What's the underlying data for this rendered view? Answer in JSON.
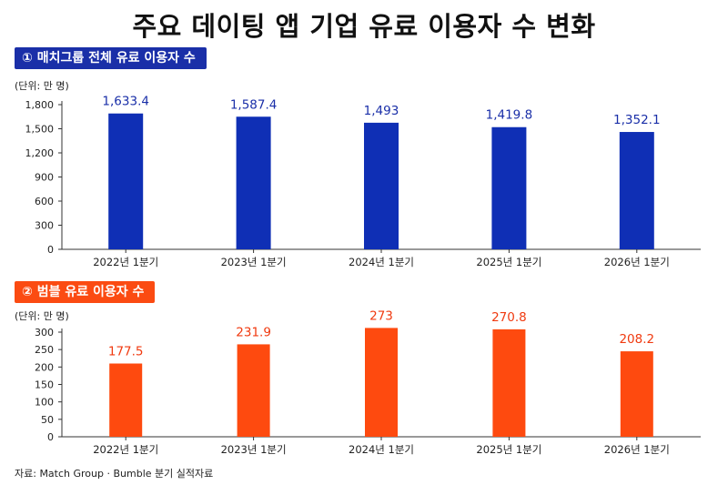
{
  "title": "주요 데이팅 앱 기업 유료 이용자 수 변화",
  "source": "자료: Match Group · Bumble 분기 실적자료",
  "colors": {
    "series1": "#0f2fb5",
    "series2": "#fe4a0f",
    "label1": "#1a2fa8",
    "label2": "#f03a10"
  },
  "chart_data": [
    {
      "type": "bar",
      "badge": "① 매치그룹 전체 유료 이용자 수",
      "unit": "(단위: 만 명)",
      "categories": [
        "2022년 1분기",
        "2023년 1분기",
        "2024년 1분기",
        "2025년 1분기",
        "2026년 1분기"
      ],
      "values": [
        1633.4,
        1587.4,
        1493,
        1419.8,
        1352.1
      ],
      "value_labels": [
        "1,633.4",
        "1,587.4",
        "1,493",
        "1,419.8",
        "1,352.1"
      ],
      "display_values": [
        1690,
        1650,
        1575,
        1520,
        1460
      ],
      "yticks": [
        0,
        300,
        600,
        900,
        1200,
        1500,
        1800
      ],
      "ytick_labels": [
        "0",
        "300",
        "600",
        "900",
        "1,200",
        "1,500",
        "1,800"
      ],
      "ylim": [
        0,
        1800
      ],
      "grid": false
    },
    {
      "type": "bar",
      "badge": "② 범블 유료 이용자 수",
      "unit": "(단위: 만 명)",
      "categories": [
        "2022년 1분기",
        "2023년 1분기",
        "2024년 1분기",
        "2025년 1분기",
        "2026년 1분기"
      ],
      "values": [
        177.5,
        231.9,
        273,
        270.8,
        208.2
      ],
      "value_labels": [
        "177.5",
        "231.9",
        "273",
        "270.8",
        "208.2"
      ],
      "display_values": [
        210,
        265,
        312,
        308,
        245
      ],
      "yticks": [
        0,
        50,
        100,
        150,
        200,
        250,
        300
      ],
      "ytick_labels": [
        "0",
        "50",
        "100",
        "150",
        "200",
        "250",
        "300"
      ],
      "ylim": [
        0,
        300
      ],
      "grid": false
    }
  ]
}
